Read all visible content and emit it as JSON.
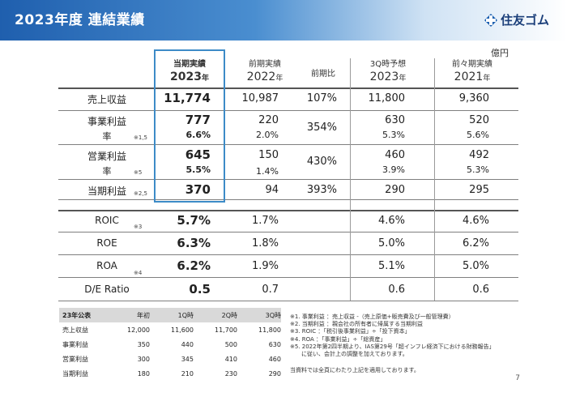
{
  "header": {
    "title": "2023年度 連結業績",
    "logo_text": "住友ゴム"
  },
  "unit": "億円",
  "columns": [
    {
      "line1": "当期実績",
      "line2": "2023",
      "suffix": "年"
    },
    {
      "line1": "前期実績",
      "line2": "2022",
      "suffix": "年"
    },
    {
      "line1": "前期比"
    },
    {
      "line1": "3Q時予想",
      "line2": "2023",
      "suffix": "年"
    },
    {
      "line1": "前々期実績",
      "line2": "2021",
      "suffix": "年"
    }
  ],
  "rows": [
    {
      "label": "売上収益",
      "note": "",
      "cur": "11,774",
      "prev": "10,987",
      "yoy": "107%",
      "fc": "11,800",
      "prev2": "9,360"
    },
    {
      "label": "事業利益",
      "note": "",
      "cur": "777",
      "prev": "220",
      "yoy": "354%",
      "fc": "630",
      "prev2": "520"
    },
    {
      "label": "率",
      "note": "※1,5",
      "cur": "6.6%",
      "prev": "2.0%",
      "yoy": "",
      "fc": "5.3%",
      "prev2": "5.6%"
    },
    {
      "label": "営業利益",
      "note": "",
      "cur": "645",
      "prev": "150",
      "yoy": "430%",
      "fc": "460",
      "prev2": "492"
    },
    {
      "label": "率",
      "note": "※5",
      "cur": "5.5%",
      "prev": "1.4%",
      "yoy": "",
      "fc": "3.9%",
      "prev2": "5.3%"
    },
    {
      "label": "当期利益",
      "note": "※2,5",
      "cur": "370",
      "prev": "94",
      "yoy": "393%",
      "fc": "290",
      "prev2": "295"
    }
  ],
  "ratios": [
    {
      "label": "ROIC",
      "note": "※3",
      "cur": "5.7%",
      "prev": "1.7%",
      "fc": "4.6%",
      "prev2": "4.6%"
    },
    {
      "label": "ROE",
      "note": "",
      "cur": "6.3%",
      "prev": "1.8%",
      "fc": "5.0%",
      "prev2": "6.2%"
    },
    {
      "label": "ROA",
      "note": "※4",
      "cur": "6.2%",
      "prev": "1.9%",
      "fc": "5.1%",
      "prev2": "5.0%"
    },
    {
      "label": "D/E Ratio",
      "note": "",
      "cur": "0.5",
      "prev": "0.7",
      "fc": "0.6",
      "prev2": "0.6"
    }
  ],
  "forecast_table": {
    "headers": [
      "23年公表",
      "年初",
      "1Q時",
      "2Q時",
      "3Q時"
    ],
    "rows": [
      [
        "売上収益",
        "12,000",
        "11,600",
        "11,700",
        "11,800"
      ],
      [
        "事業利益",
        "350",
        "440",
        "500",
        "630"
      ],
      [
        "営業利益",
        "300",
        "345",
        "410",
        "460"
      ],
      [
        "当期利益",
        "180",
        "210",
        "230",
        "290"
      ]
    ]
  },
  "notes": [
    "※1. 事業利益 ：売上収益 -（売上原価+販売費及び一般管理費）",
    "※2. 当期利益 ：親会社の所有者に帰属する当期利益",
    "※3. ROIC ：「税引後事業利益」÷「投下資本」",
    "※4. ROA ：「事業利益」÷「総資産」",
    "※5. 2022年第2四半期より、IAS第29号「超インフレ経済下における財務報告」",
    "　　に従い、会計上の調整を加えております。"
  ],
  "footer_note": "当資料では全頁にわたり上記を適用しております。",
  "page_number": "7"
}
